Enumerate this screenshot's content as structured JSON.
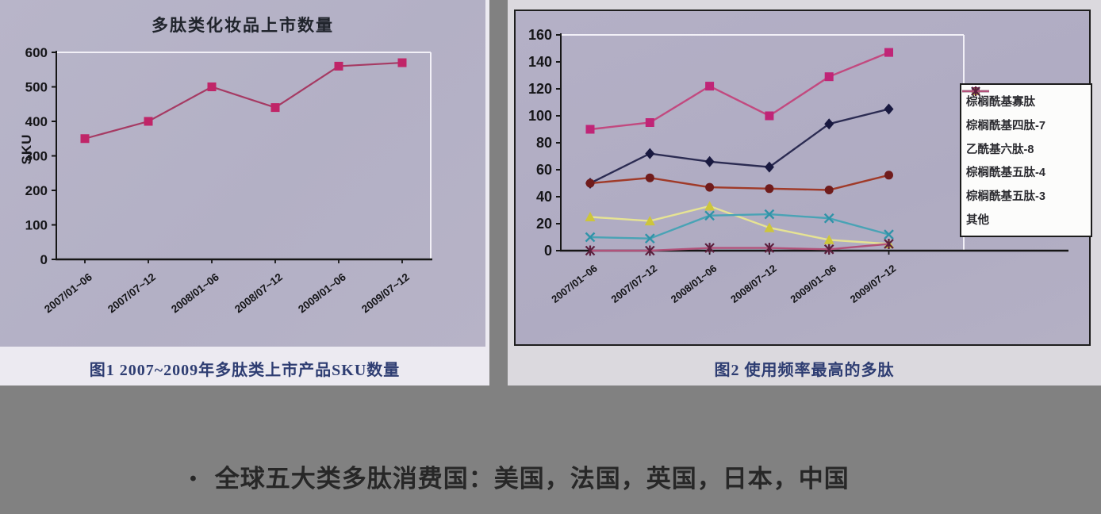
{
  "page": {
    "bullet_glyph": "•",
    "bullet_text": "全球五大类多肽消费国：美国，法国，英国，日本，中国",
    "background_color": "#818181"
  },
  "figure1": {
    "caption": "图1 2007~2009年多肽类上市产品SKU数量",
    "panel_color": "#b5b2c6"
  },
  "figure2": {
    "caption": "图2 使用频率最高的多肽",
    "panel_color": "#b2aec5",
    "legend_position": "right-overlay"
  },
  "chart_data": [
    {
      "type": "line",
      "title": "多肽类化妆品上市数量",
      "xlabel": "",
      "ylabel": "SKU",
      "categories": [
        "2007/01~06",
        "2007/07~12",
        "2008/01~06",
        "2008/07~12",
        "2009/01~06",
        "2009/07~12"
      ],
      "series": [
        {
          "name": "SKU",
          "values": [
            350,
            400,
            500,
            440,
            560,
            570
          ],
          "color": "#a63a63",
          "marker": "square",
          "marker_color": "#c02568"
        }
      ],
      "ylim": [
        0,
        600
      ],
      "ytick_step": 100,
      "grid": false,
      "legend": false
    },
    {
      "type": "line",
      "title": "",
      "xlabel": "",
      "ylabel": "",
      "categories": [
        "2007/01~06",
        "2007/07~12",
        "2008/01~06",
        "2008/07~12",
        "2009/01~06",
        "2009/07~12"
      ],
      "series": [
        {
          "name": "棕榈酰基寡肽",
          "values": [
            90,
            95,
            122,
            100,
            129,
            147
          ],
          "color": "#c2497f",
          "marker": "square",
          "marker_color": "#c02577"
        },
        {
          "name": "棕榈酰基四肽-7",
          "values": [
            50,
            72,
            66,
            62,
            94,
            105
          ],
          "color": "#2b2b52",
          "marker": "diamond",
          "marker_color": "#191940"
        },
        {
          "name": "乙酰基六肽-8",
          "values": [
            50,
            54,
            47,
            46,
            45,
            56
          ],
          "color": "#a03a28",
          "marker": "circle",
          "marker_color": "#701c1c"
        },
        {
          "name": "棕榈酰基五肽-4",
          "values": [
            25,
            22,
            33,
            17,
            8,
            5
          ],
          "color": "#e6e393",
          "marker": "triangle",
          "marker_color": "#cdc53b"
        },
        {
          "name": "棕榈酰基五肽-3",
          "values": [
            10,
            9,
            26,
            27,
            24,
            12
          ],
          "color": "#49a3b5",
          "marker": "x",
          "marker_color": "#2f93a8"
        },
        {
          "name": "其他",
          "values": [
            0,
            0,
            2,
            2,
            1,
            5
          ],
          "color": "#b2527a",
          "marker": "asterisk",
          "marker_color": "#5c1f3d"
        }
      ],
      "ylim": [
        0,
        160
      ],
      "ytick_step": 20,
      "grid": false,
      "legend": true
    }
  ]
}
